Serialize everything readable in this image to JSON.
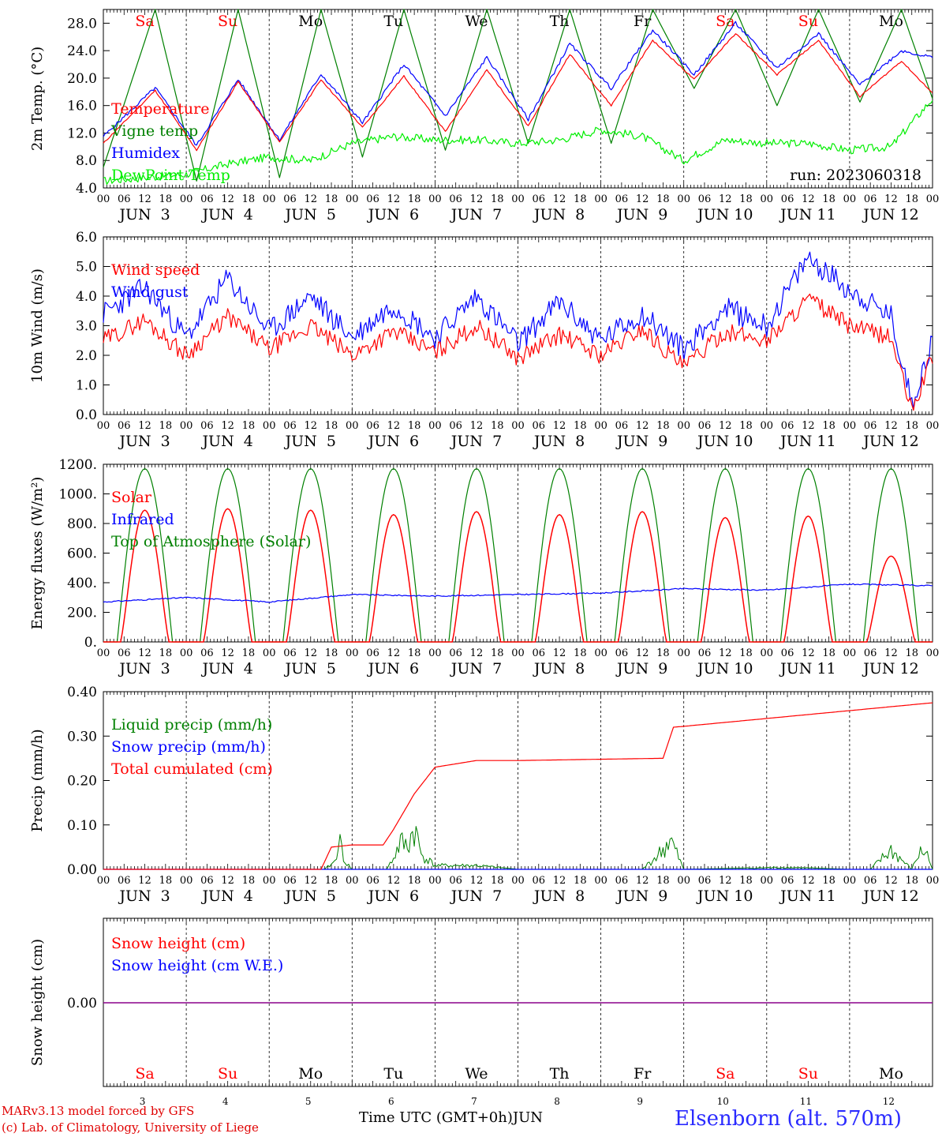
{
  "footer": {
    "credit_line1": "MARv3.13 model forced by GFS",
    "credit_line2": "(c) Lab. of Climatology, University of Liege",
    "xlabel": "Time UTC (GMT+0h)",
    "month": "JUN",
    "station": "Elsenborn (alt. 570m)"
  },
  "colors": {
    "red": "#ff0000",
    "blue": "#0000ff",
    "dark_green": "#008000",
    "light_green": "#00ee00",
    "purple": "#8b008b"
  },
  "chart_data": [
    {
      "type": "line",
      "ylabel": "2m Temp. (°C)",
      "ylim": [
        4,
        30
      ],
      "yticks": [
        "4.0",
        "8.0",
        "12.0",
        "16.0",
        "20.0",
        "24.0",
        "28.0"
      ],
      "annotation": "run: 2023060318",
      "x_hour_ticks": [
        "00",
        "06",
        "12",
        "18"
      ],
      "x_day_labels": [
        "JUN  3",
        "JUN  4",
        "JUN  5",
        "JUN  6",
        "JUN  7",
        "JUN  8",
        "JUN  9",
        "JUN 10",
        "JUN 11",
        "JUN 12"
      ],
      "weekday_labels": [
        {
          "text": "Sa",
          "color": "#ff0000"
        },
        {
          "text": "Su",
          "color": "#ff0000"
        },
        {
          "text": "Mo",
          "color": "#000000"
        },
        {
          "text": "Tu",
          "color": "#000000"
        },
        {
          "text": "We",
          "color": "#000000"
        },
        {
          "text": "Th",
          "color": "#000000"
        },
        {
          "text": "Fr",
          "color": "#000000"
        },
        {
          "text": "Sa",
          "color": "#ff0000"
        },
        {
          "text": "Su",
          "color": "#ff0000"
        },
        {
          "text": "Mo",
          "color": "#000000"
        }
      ],
      "series": [
        {
          "name": "Temperature",
          "color": "#ff0000",
          "x": [
            0,
            15,
            27,
            39,
            51,
            63,
            75,
            87,
            99,
            111,
            123,
            135,
            147,
            159,
            171,
            183,
            195,
            207,
            219,
            231,
            240
          ],
          "values": [
            10.5,
            18.2,
            9.5,
            19.5,
            10.7,
            19.8,
            12.8,
            20.3,
            12.2,
            21.2,
            13.0,
            23.5,
            16.0,
            25.5,
            19.8,
            26.5,
            20.5,
            25.5,
            17.3,
            22.5,
            17.8
          ]
        },
        {
          "name": "Vigne temp",
          "color": "#008000",
          "x": [
            0,
            15,
            27,
            39,
            51,
            63,
            75,
            87,
            99,
            111,
            123,
            135,
            147,
            159,
            171,
            183,
            195,
            207,
            219,
            231,
            240
          ],
          "values": [
            7.0,
            30.0,
            5.0,
            30.0,
            5.5,
            30.0,
            8.5,
            30.0,
            9.5,
            30.0,
            10.5,
            30.0,
            10.5,
            30.0,
            18.5,
            30.0,
            16.0,
            30.0,
            16.5,
            30.0,
            17.0
          ]
        },
        {
          "name": "Humidex",
          "color": "#0000ff",
          "x": [
            0,
            15,
            27,
            39,
            51,
            63,
            75,
            87,
            99,
            111,
            123,
            135,
            147,
            159,
            171,
            183,
            195,
            207,
            219,
            231,
            240
          ],
          "values": [
            11.5,
            18.6,
            10.2,
            19.8,
            11.0,
            20.6,
            13.5,
            22.0,
            14.5,
            23.0,
            14.0,
            25.0,
            18.5,
            27.0,
            20.5,
            28.0,
            21.5,
            26.5,
            19.0,
            24.0,
            23.0
          ]
        },
        {
          "name": "DewPoint Temp",
          "color": "#00ee00",
          "x": [
            0,
            12,
            24,
            36,
            48,
            60,
            72,
            84,
            96,
            108,
            120,
            132,
            144,
            156,
            168,
            180,
            192,
            204,
            216,
            228,
            240
          ],
          "values": [
            5.0,
            5.5,
            6.0,
            7.5,
            8.5,
            8.0,
            10.5,
            11.5,
            11.0,
            11.0,
            10.5,
            11.0,
            12.5,
            11.5,
            8.0,
            11.0,
            10.5,
            10.5,
            9.5,
            10.0,
            17.0
          ]
        }
      ]
    },
    {
      "type": "line",
      "ylabel": "10m Wind (m/s)",
      "ylim": [
        0,
        6
      ],
      "yticks": [
        "0.0",
        "1.0",
        "2.0",
        "3.0",
        "4.0",
        "5.0",
        "6.0"
      ],
      "x_hour_ticks": [
        "00",
        "06",
        "12",
        "18"
      ],
      "x_day_labels": [
        "JUN  3",
        "JUN  4",
        "JUN  5",
        "JUN  6",
        "JUN  7",
        "JUN  8",
        "JUN  9",
        "JUN 10",
        "JUN 11",
        "JUN 12"
      ],
      "series": [
        {
          "name": "Wind speed",
          "color": "#ff0000",
          "x": [
            0,
            12,
            24,
            36,
            48,
            60,
            72,
            84,
            96,
            108,
            120,
            132,
            144,
            156,
            168,
            180,
            192,
            204,
            216,
            228,
            234,
            240
          ],
          "values": [
            2.5,
            3.2,
            2.0,
            3.3,
            2.2,
            3.0,
            2.0,
            2.8,
            2.1,
            3.0,
            1.9,
            2.7,
            2.0,
            2.9,
            1.6,
            2.8,
            2.5,
            3.9,
            3.0,
            2.6,
            0.1,
            2.0
          ]
        },
        {
          "name": "Wind gust",
          "color": "#0000ff",
          "x": [
            0,
            12,
            24,
            36,
            48,
            60,
            72,
            84,
            96,
            108,
            120,
            132,
            144,
            156,
            168,
            180,
            192,
            204,
            216,
            228,
            234,
            240
          ],
          "values": [
            3.4,
            4.3,
            2.6,
            4.6,
            2.8,
            4.0,
            2.6,
            3.7,
            2.6,
            4.0,
            2.4,
            3.8,
            2.5,
            3.4,
            2.2,
            3.6,
            3.0,
            5.3,
            4.2,
            3.3,
            0.4,
            2.5
          ]
        }
      ]
    },
    {
      "type": "line",
      "ylabel": "Energy fluxes (W/m²)",
      "ylim": [
        0,
        1200
      ],
      "yticks": [
        "0.",
        "200.",
        "400.",
        "600.",
        "800.",
        "1000.",
        "1200."
      ],
      "x_hour_ticks": [
        "00",
        "06",
        "12",
        "18"
      ],
      "x_day_labels": [
        "JUN  3",
        "JUN  4",
        "JUN  5",
        "JUN  6",
        "JUN  7",
        "JUN  8",
        "JUN  9",
        "JUN 10",
        "JUN 11",
        "JUN 12"
      ],
      "solar_day_peaks": [
        890,
        900,
        890,
        860,
        880,
        860,
        880,
        840,
        850,
        580
      ],
      "toa_peak": 1170,
      "series": [
        {
          "name": "Solar",
          "color": "#ff0000"
        },
        {
          "name": "Infrared",
          "color": "#0000ff",
          "x": [
            0,
            24,
            48,
            72,
            96,
            120,
            144,
            168,
            192,
            216,
            240
          ],
          "values": [
            270,
            300,
            270,
            320,
            310,
            320,
            330,
            360,
            350,
            390,
            380
          ]
        },
        {
          "name": "Top of Atmosphere (Solar)",
          "color": "#008000"
        }
      ]
    },
    {
      "type": "line",
      "ylabel": "Precip (mm/h)",
      "ylim": [
        0,
        0.4
      ],
      "yticks": [
        "0.00",
        "0.10",
        "0.20",
        "0.30",
        "0.40"
      ],
      "x_hour_ticks": [
        "00",
        "06",
        "12",
        "18"
      ],
      "x_day_labels": [
        "JUN  3",
        "JUN  4",
        "JUN  5",
        "JUN  6",
        "JUN  7",
        "JUN  8",
        "JUN  9",
        "JUN 10",
        "JUN 11",
        "JUN 12"
      ],
      "series": [
        {
          "name": "Liquid precip (mm/h)",
          "color": "#008000",
          "x": [
            0,
            64,
            67,
            68,
            70,
            72,
            82,
            84,
            86,
            88,
            90,
            92,
            96,
            108,
            120,
            156,
            162,
            164,
            166,
            168,
            198,
            216,
            222,
            228,
            234,
            236,
            238,
            240
          ],
          "values": [
            0,
            0,
            0.02,
            0.08,
            0.02,
            0,
            0,
            0.03,
            0.07,
            0.06,
            0.11,
            0.04,
            0.01,
            0.01,
            0,
            0,
            0.05,
            0.08,
            0.04,
            0,
            0.005,
            0,
            0,
            0.05,
            0,
            0.04,
            0.05,
            0
          ]
        },
        {
          "name": "Snow precip (mm/h)",
          "color": "#0000ff",
          "x": [
            0,
            240
          ],
          "values": [
            0,
            0
          ]
        },
        {
          "name": "Total cumulated (cm)",
          "color": "#ff0000",
          "x": [
            0,
            63,
            66,
            72,
            81,
            84,
            87,
            90,
            96,
            108,
            120,
            162,
            165,
            168,
            240
          ],
          "values": [
            0,
            0,
            0.05,
            0.055,
            0.055,
            0.09,
            0.13,
            0.17,
            0.23,
            0.245,
            0.245,
            0.25,
            0.32,
            0.322,
            0.375
          ]
        }
      ]
    },
    {
      "type": "line",
      "ylabel": "Snow height (cm)",
      "yticks": [
        "0.00"
      ],
      "x_bottom_day_numbers": [
        "3",
        "4",
        "5",
        "6",
        "7",
        "8",
        "9",
        "10",
        "11",
        "12"
      ],
      "weekday_labels": [
        {
          "text": "Sa",
          "color": "#ff0000"
        },
        {
          "text": "Su",
          "color": "#ff0000"
        },
        {
          "text": "Mo",
          "color": "#000000"
        },
        {
          "text": "Tu",
          "color": "#000000"
        },
        {
          "text": "We",
          "color": "#000000"
        },
        {
          "text": "Th",
          "color": "#000000"
        },
        {
          "text": "Fr",
          "color": "#000000"
        },
        {
          "text": "Sa",
          "color": "#ff0000"
        },
        {
          "text": "Su",
          "color": "#ff0000"
        },
        {
          "text": "Mo",
          "color": "#000000"
        }
      ],
      "series": [
        {
          "name": "Snow height (cm)",
          "color": "#ff0000",
          "x": [
            0,
            240
          ],
          "values": [
            0,
            0
          ]
        },
        {
          "name": "Snow height (cm W.E.)",
          "color": "#0000ff",
          "x": [
            0,
            240
          ],
          "values": [
            0,
            0
          ]
        }
      ]
    }
  ]
}
